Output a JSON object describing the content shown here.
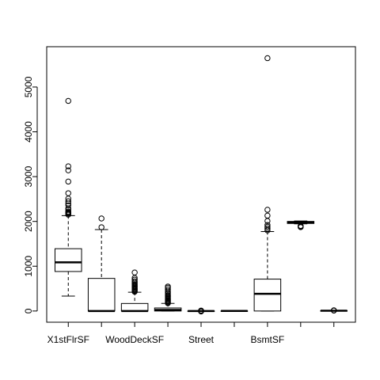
{
  "chart_data": {
    "type": "boxplot",
    "title": "",
    "xlabel": "",
    "ylabel": "",
    "ylim": [
      -250,
      5900
    ],
    "yticks": [
      0,
      1000,
      2000,
      3000,
      4000,
      5000
    ],
    "ytick_labels": [
      "0",
      "1000",
      "2000",
      "3000",
      "4000",
      "5000"
    ],
    "categories": [
      "X1stFlrSF",
      "",
      "WoodDeckSF",
      "",
      "Street",
      "",
      "BsmtSF",
      "",
      ""
    ],
    "boxes": [
      {
        "category": "X1stFlrSF",
        "min": 334,
        "q1": 882,
        "median": 1087,
        "q3": 1391,
        "max": 2130,
        "outliers": [
          2150,
          2170,
          2190,
          2200,
          2220,
          2260,
          2290,
          2360,
          2400,
          2450,
          2510,
          2630,
          2890,
          3140,
          3230,
          4690
        ]
      },
      {
        "category": "",
        "min": 0,
        "q1": 0,
        "median": 0,
        "q3": 728,
        "max": 1818,
        "outliers": [
          1870,
          2065
        ]
      },
      {
        "category": "WoodDeckSF",
        "min": 0,
        "q1": 0,
        "median": 0,
        "q3": 168,
        "max": 420,
        "outliers": [
          430,
          450,
          470,
          490,
          500,
          520,
          540,
          560,
          580,
          600,
          630,
          660,
          700,
          740,
          860
        ]
      },
      {
        "category": "",
        "min": 0,
        "q1": 0,
        "median": 25,
        "q3": 68,
        "max": 170,
        "outliers": [
          175,
          190,
          210,
          230,
          250,
          270,
          290,
          310,
          330,
          350,
          380,
          410,
          440,
          480,
          520,
          547
        ]
      },
      {
        "category": "Street",
        "min": 0,
        "q1": 0,
        "median": 0,
        "q3": 0,
        "max": 0,
        "outliers": [
          -10,
          0,
          10
        ]
      },
      {
        "category": "",
        "min": 1,
        "q1": 1,
        "median": 1,
        "q3": 1,
        "max": 1,
        "outliers": []
      },
      {
        "category": "BsmtSF",
        "min": 0,
        "q1": 0,
        "median": 383,
        "q3": 712,
        "max": 1774,
        "outliers": [
          1800,
          1840,
          1880,
          1920,
          2010,
          2130,
          2260,
          5644
        ]
      },
      {
        "category": "",
        "min": 1945,
        "q1": 1954,
        "median": 1973,
        "q3": 2000,
        "max": 2010,
        "outliers": [
          1872,
          1880,
          1890,
          1900
        ]
      },
      {
        "category": "",
        "min": 1,
        "q1": 5,
        "median": 6,
        "q3": 7,
        "max": 9,
        "outliers": [
          10,
          12,
          15
        ]
      }
    ]
  }
}
